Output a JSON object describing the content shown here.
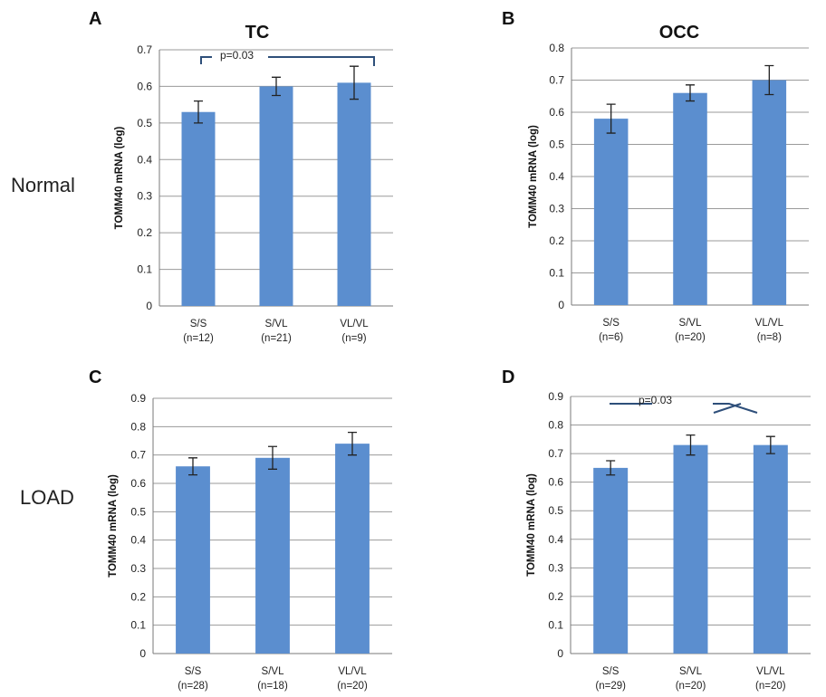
{
  "row_labels": {
    "normal": "Normal",
    "load": "LOAD"
  },
  "colors": {
    "bar": "#5b8ecf",
    "bracket": "#2e4f7a"
  },
  "chart_data": [
    {
      "id": "A",
      "type": "bar",
      "letter": "A",
      "title": "TC",
      "ylabel": "TOMM40 mRNA (log)",
      "ylim": [
        0,
        0.7
      ],
      "yticks": [
        "0",
        "0.1",
        "0.2",
        "0.3",
        "0.4",
        "0.5",
        "0.6",
        "0.7"
      ],
      "categories": [
        "S/S",
        "S/VL",
        "VL/VL"
      ],
      "category_n": [
        "(n=12)",
        "(n=21)",
        "(n=9)"
      ],
      "values": [
        0.53,
        0.6,
        0.61
      ],
      "errors": [
        0.03,
        0.025,
        0.045
      ],
      "annotation": "p=0.03",
      "grid": true
    },
    {
      "id": "B",
      "type": "bar",
      "letter": "B",
      "title": "OCC",
      "ylabel": "TOMM40 mRNA (log)",
      "ylim": [
        0,
        0.8
      ],
      "yticks": [
        "0",
        "0.1",
        "0.2",
        "0.3",
        "0.4",
        "0.5",
        "0.6",
        "0.7",
        "0.8"
      ],
      "categories": [
        "S/S",
        "S/VL",
        "VL/VL"
      ],
      "category_n": [
        "(n=6)",
        "(n=20)",
        "(n=8)"
      ],
      "values": [
        0.58,
        0.66,
        0.7
      ],
      "errors": [
        0.045,
        0.025,
        0.045
      ],
      "annotation": "",
      "grid": true
    },
    {
      "id": "C",
      "type": "bar",
      "letter": "C",
      "title": "",
      "ylabel": "TOMM40 mRNA (log)",
      "ylim": [
        0,
        0.9
      ],
      "yticks": [
        "0",
        "0.1",
        "0.2",
        "0.3",
        "0.4",
        "0.5",
        "0.6",
        "0.7",
        "0.8",
        "0.9"
      ],
      "categories": [
        "S/S",
        "S/VL",
        "VL/VL"
      ],
      "category_n": [
        "(n=28)",
        "(n=18)",
        "(n=20)"
      ],
      "values": [
        0.66,
        0.69,
        0.74
      ],
      "errors": [
        0.03,
        0.04,
        0.04
      ],
      "annotation": "",
      "grid": true
    },
    {
      "id": "D",
      "type": "bar",
      "letter": "D",
      "title": "",
      "ylabel": "TOMM40 mRNA (log)",
      "ylim": [
        0,
        0.9
      ],
      "yticks": [
        "0",
        "0.1",
        "0.2",
        "0.3",
        "0.4",
        "0.5",
        "0.6",
        "0.7",
        "0.8",
        "0.9"
      ],
      "categories": [
        "S/S",
        "S/VL",
        "VL/VL"
      ],
      "category_n": [
        "(n=29)",
        "(n=20)",
        "(n=20)"
      ],
      "values": [
        0.65,
        0.73,
        0.73
      ],
      "errors": [
        0.025,
        0.035,
        0.03
      ],
      "annotation": "p=0.03",
      "grid": true
    }
  ]
}
